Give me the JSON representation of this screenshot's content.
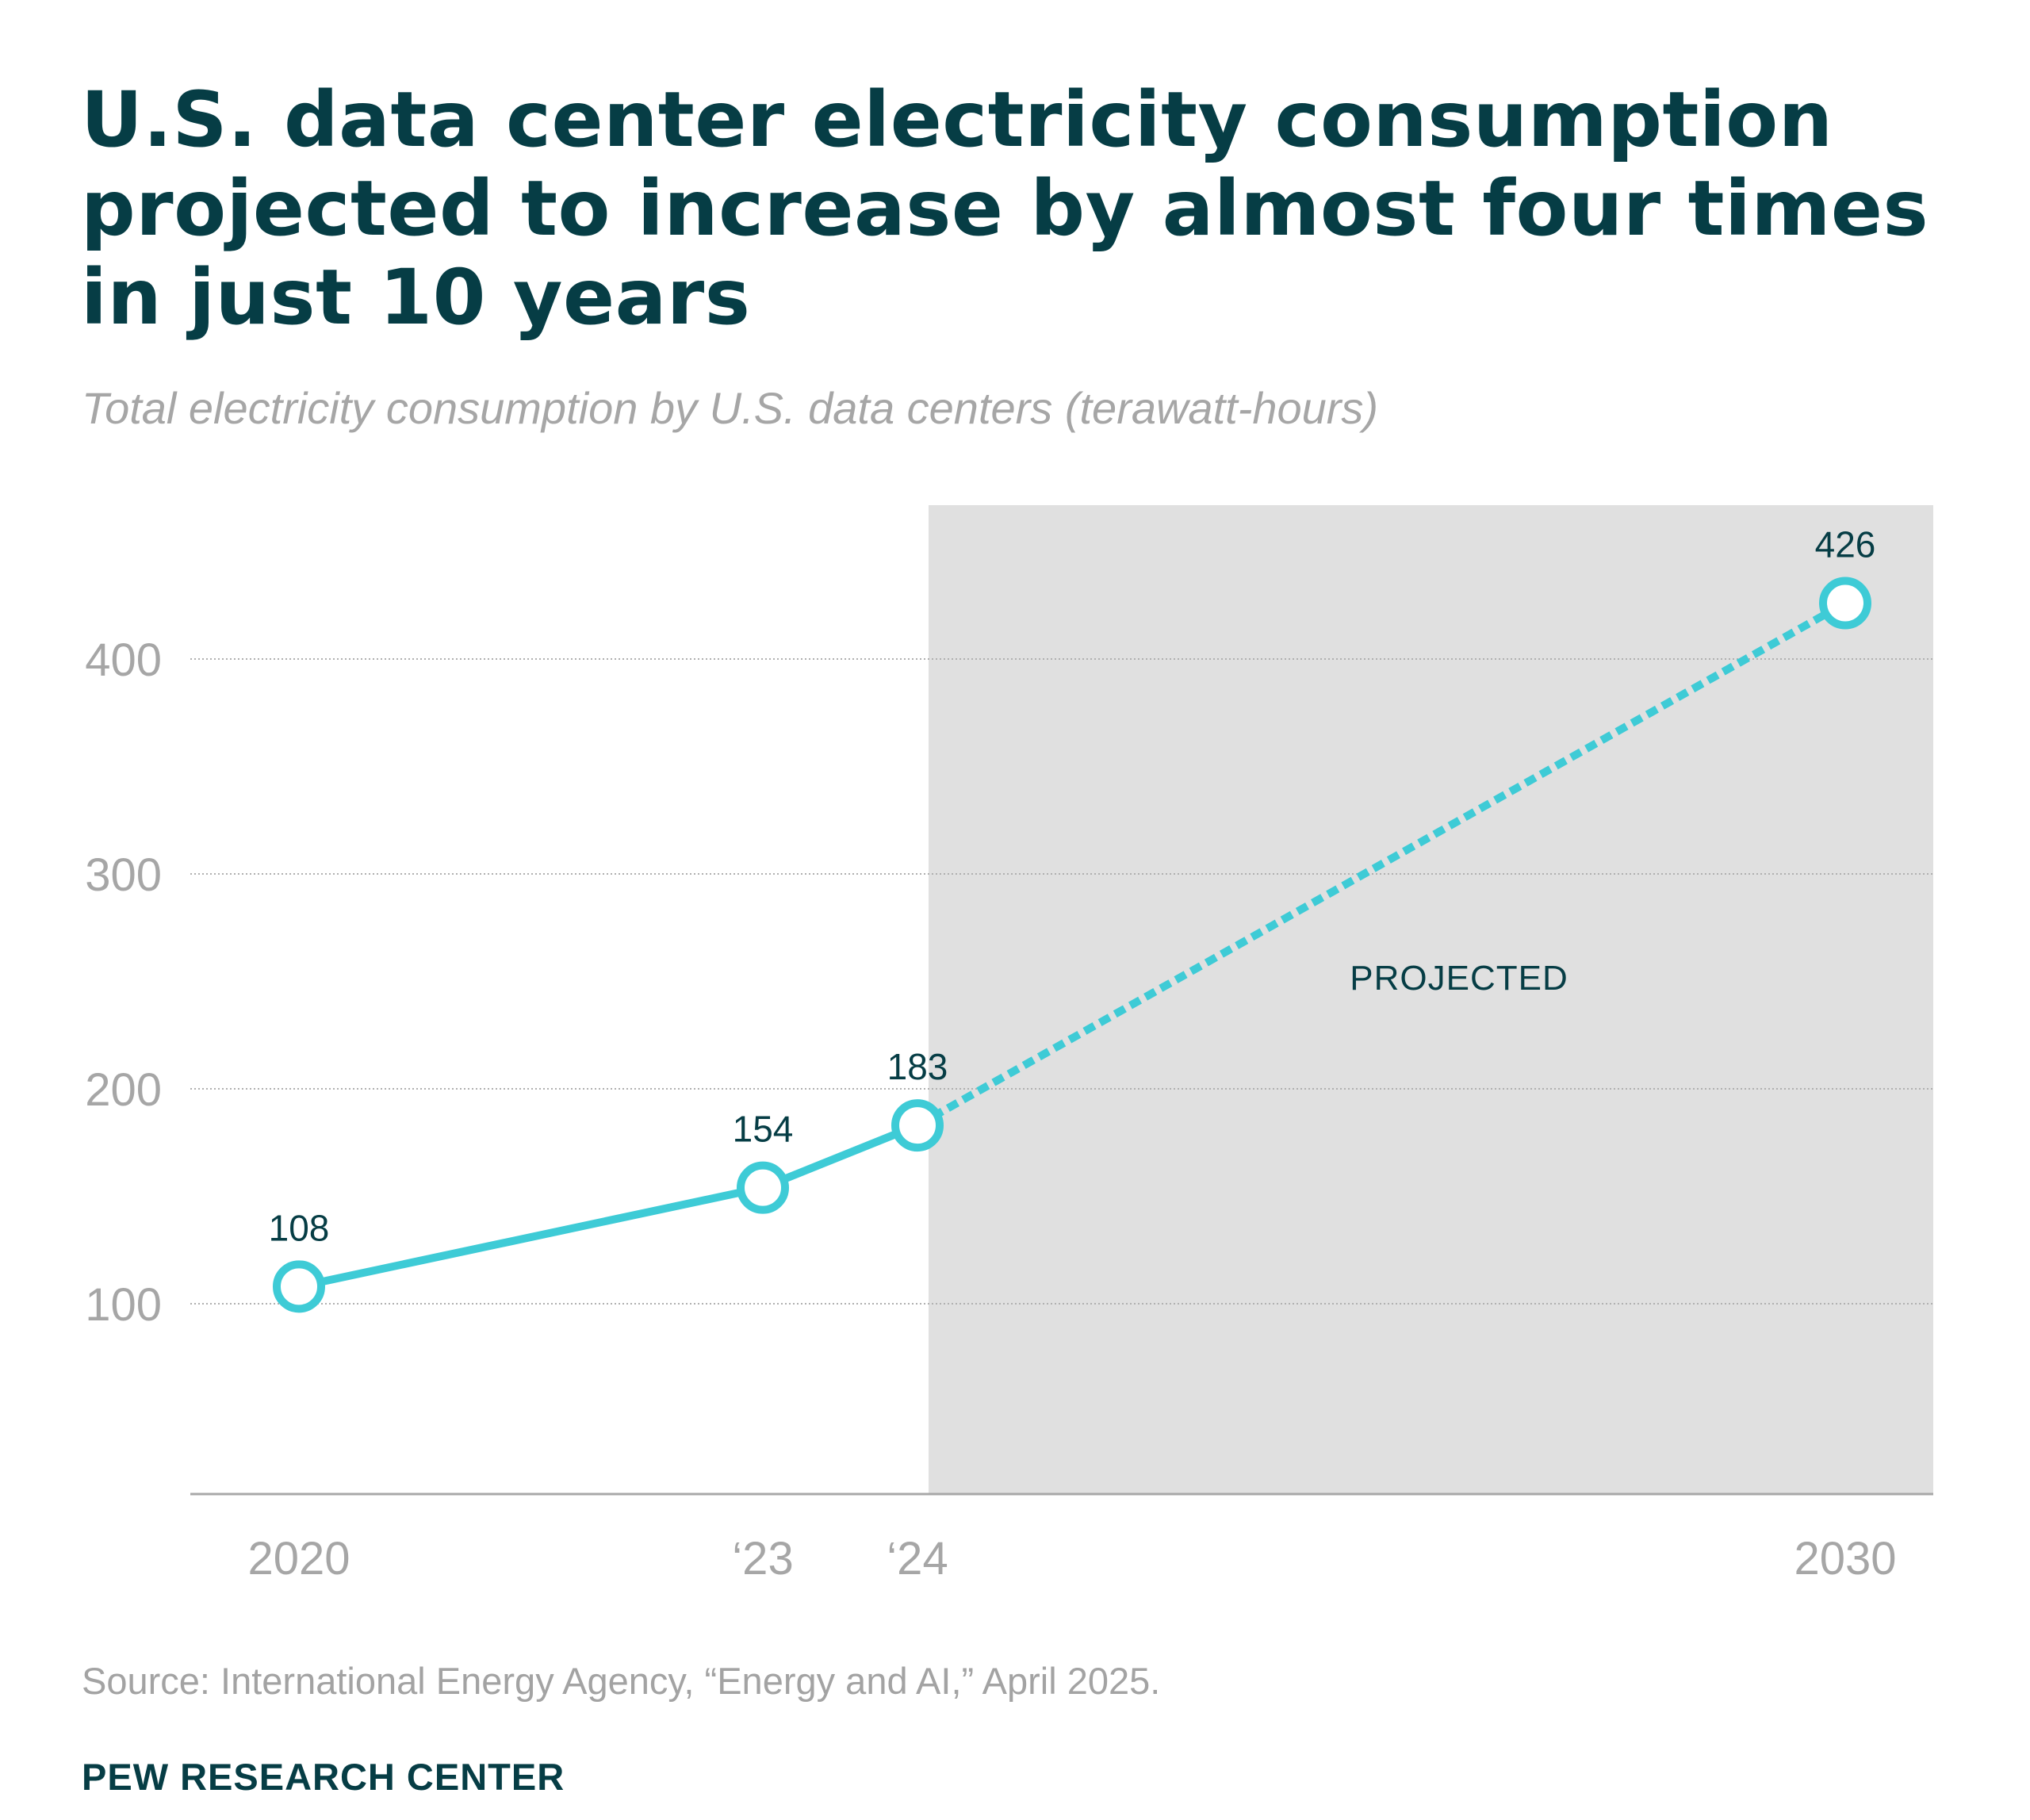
{
  "header": {
    "title": "U.S. data center electricity consumption projected to increase by almost four times in just 10 years",
    "subtitle": "Total electricity consumption by U.S. data centers (terawatt-hours)"
  },
  "footer": {
    "source": "Source: International Energy Agency, “Energy and AI,” April 2025.",
    "brand": "PEW RESEARCH CENTER"
  },
  "colors": {
    "title": "#063d45",
    "line": "#3ecbd6",
    "label_dark": "#063d45",
    "axis_text": "#a6a6a6",
    "projected_shade": "#e0e0e0",
    "grid": "#b0b0b0"
  },
  "chart_data": {
    "type": "line",
    "title": "U.S. data center electricity consumption projected to increase by almost four times in just 10 years",
    "subtitle": "Total electricity consumption by U.S. data centers (terawatt-hours)",
    "xlabel": "",
    "ylabel": "",
    "x": [
      2020,
      2023,
      2024,
      2030
    ],
    "x_tick_labels": [
      "2020",
      "‘23",
      "‘24",
      "2030"
    ],
    "series": [
      {
        "name": "U.S. data center electricity consumption (TWh)",
        "values": [
          108,
          154,
          183,
          426
        ],
        "data_labels": [
          "108",
          "154",
          "183",
          "426"
        ],
        "solid_until": 2024,
        "dashed_from": 2024
      }
    ],
    "y_ticks": [
      100,
      200,
      300,
      400
    ],
    "y_tick_labels": [
      "100",
      "200",
      "300",
      "400"
    ],
    "ylim": [
      0,
      460
    ],
    "xlim": [
      2019.2,
      2030.6
    ],
    "grid": "horizontal-dotted",
    "legend": "none",
    "annotations": [
      {
        "text": "PROJECTED",
        "region_start": 2024.15,
        "region_end": 2030.6
      }
    ],
    "source": "Source: International Energy Agency, “Energy and AI,” April 2025."
  }
}
